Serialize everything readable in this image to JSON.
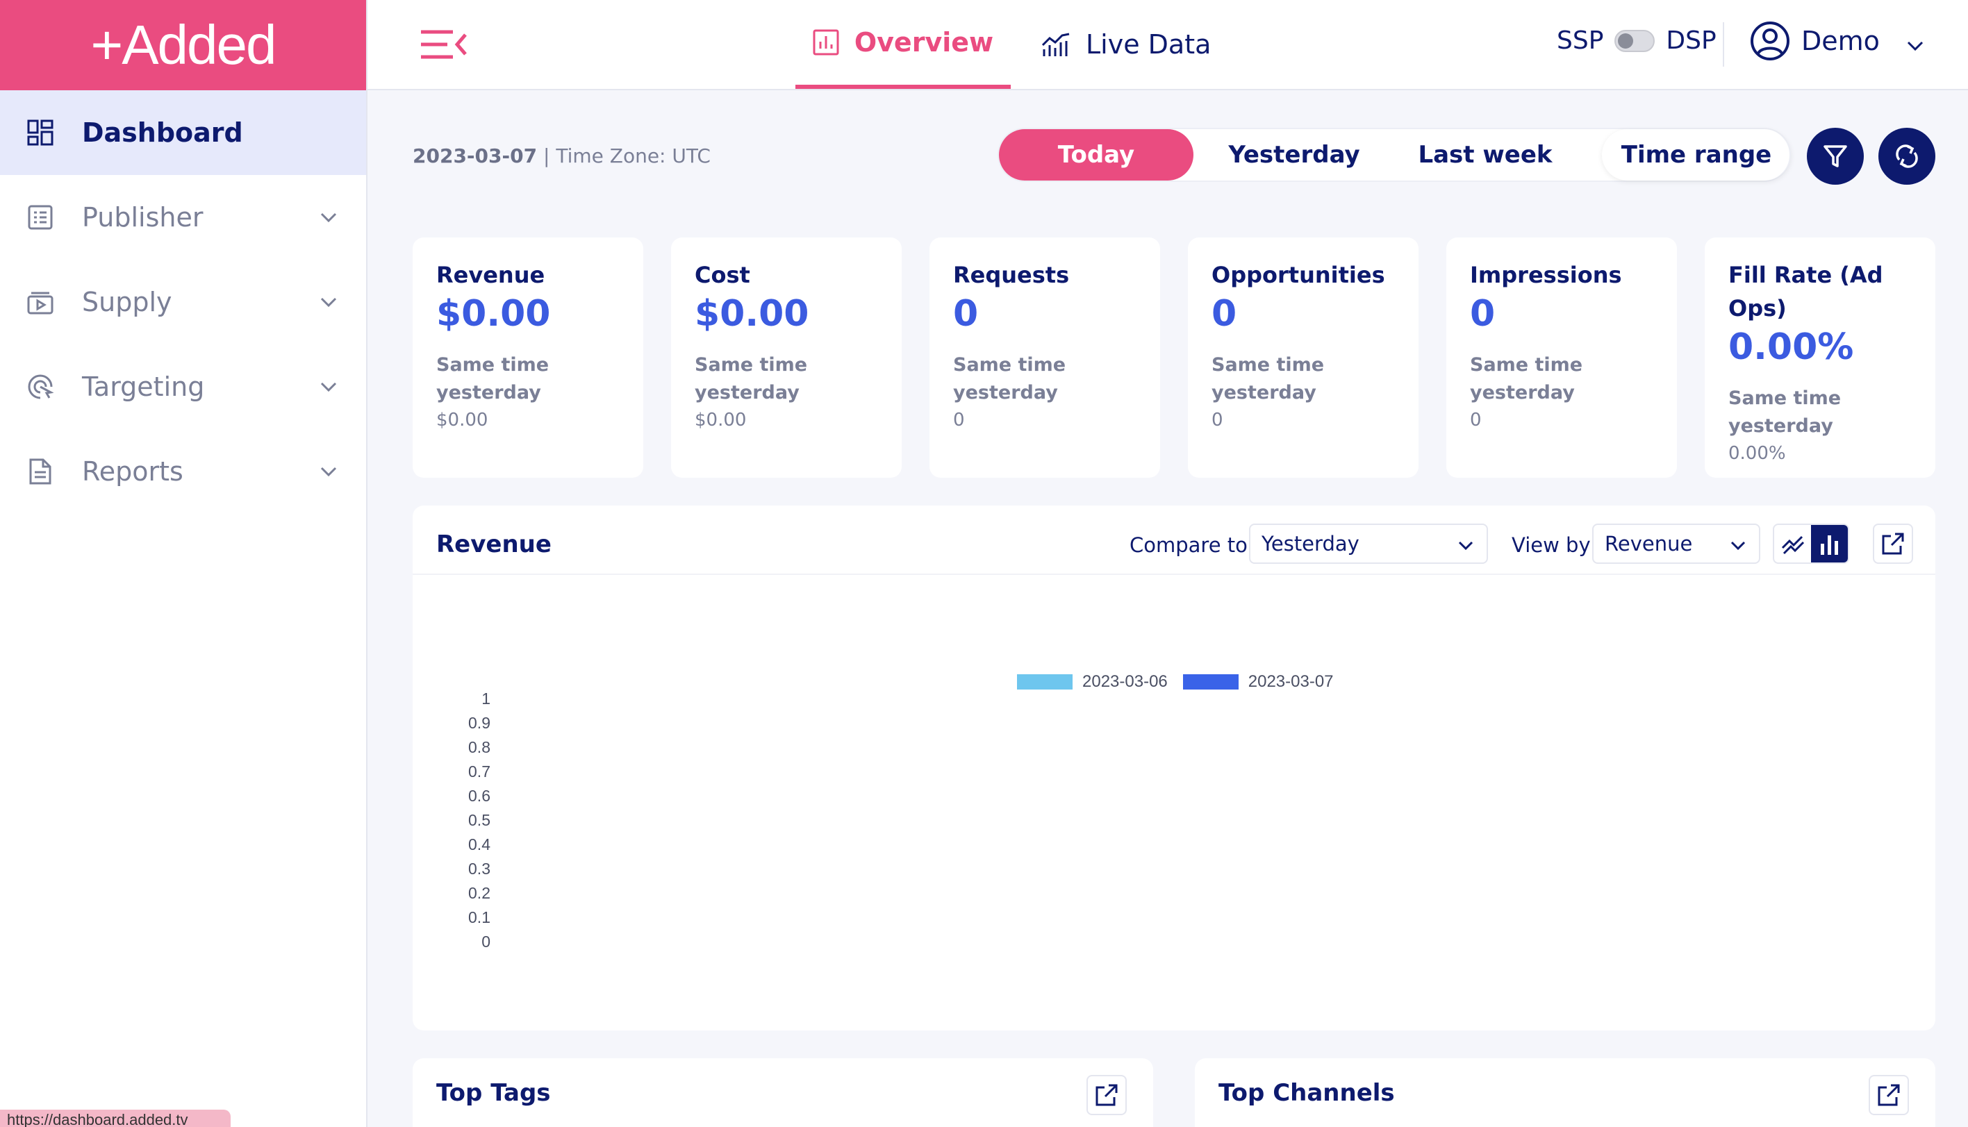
{
  "app": {
    "logo": "+Added"
  },
  "sidebar": {
    "items": [
      {
        "label": "Dashboard",
        "icon": "dashboard-grid-icon",
        "active": true
      },
      {
        "label": "Publisher",
        "icon": "publisher-icon"
      },
      {
        "label": "Supply",
        "icon": "supply-icon"
      },
      {
        "label": "Targeting",
        "icon": "targeting-icon"
      },
      {
        "label": "Reports",
        "icon": "reports-icon"
      }
    ]
  },
  "topbar": {
    "tabs": [
      {
        "label": "Overview",
        "icon": "bar-chart-icon",
        "active": true
      },
      {
        "label": "Live Data",
        "icon": "line-chart-icon"
      }
    ],
    "ssp_label": "SSP",
    "dsp_label": "DSP",
    "user_name": "Demo"
  },
  "date_bar": {
    "date": "2023-03-07",
    "timezone": " | Time Zone: UTC",
    "ranges": [
      "Today",
      "Yesterday",
      "Last week",
      "Time range"
    ]
  },
  "metrics": [
    {
      "title": "Revenue",
      "value": "$0.00",
      "sub": "Same time yesterday",
      "subval": "$0.00"
    },
    {
      "title": "Cost",
      "value": "$0.00",
      "sub": "Same time yesterday",
      "subval": "$0.00"
    },
    {
      "title": "Requests",
      "value": "0",
      "sub": "Same time yesterday",
      "subval": "0"
    },
    {
      "title": "Opportunities",
      "value": "0",
      "sub": "Same time yesterday",
      "subval": "0"
    },
    {
      "title": "Impressions",
      "value": "0",
      "sub": "Same time yesterday",
      "subval": "0"
    },
    {
      "title": "Fill Rate (Ad Ops)",
      "value": "0.00%",
      "sub": "Same time yesterday",
      "subval": "0.00%"
    }
  ],
  "revenue_panel": {
    "title": "Revenue",
    "compare_label": "Compare to",
    "compare_value": "Yesterday",
    "viewby_label": "View by",
    "viewby_value": "Revenue"
  },
  "chart_data": {
    "type": "bar",
    "title": "",
    "xlabel": "",
    "ylabel": "",
    "ylim": [
      0,
      1
    ],
    "yticks": [
      "1",
      "0.9",
      "0.8",
      "0.7",
      "0.6",
      "0.5",
      "0.4",
      "0.3",
      "0.2",
      "0.1",
      "0"
    ],
    "legend_placement": "top-center",
    "series": [
      {
        "name": "2023-03-06",
        "color": "#6ec6ee",
        "values": []
      },
      {
        "name": "2023-03-07",
        "color": "#3a63e8",
        "values": []
      }
    ]
  },
  "bottom_panels": [
    {
      "title": "Top Tags"
    },
    {
      "title": "Top Channels"
    }
  ],
  "status_bar": {
    "url": "https://dashboard.added.tv"
  },
  "colors": {
    "brand_pink": "#ea4c80",
    "navy": "#0d1a6e",
    "accent_blue": "#3b5be0"
  }
}
